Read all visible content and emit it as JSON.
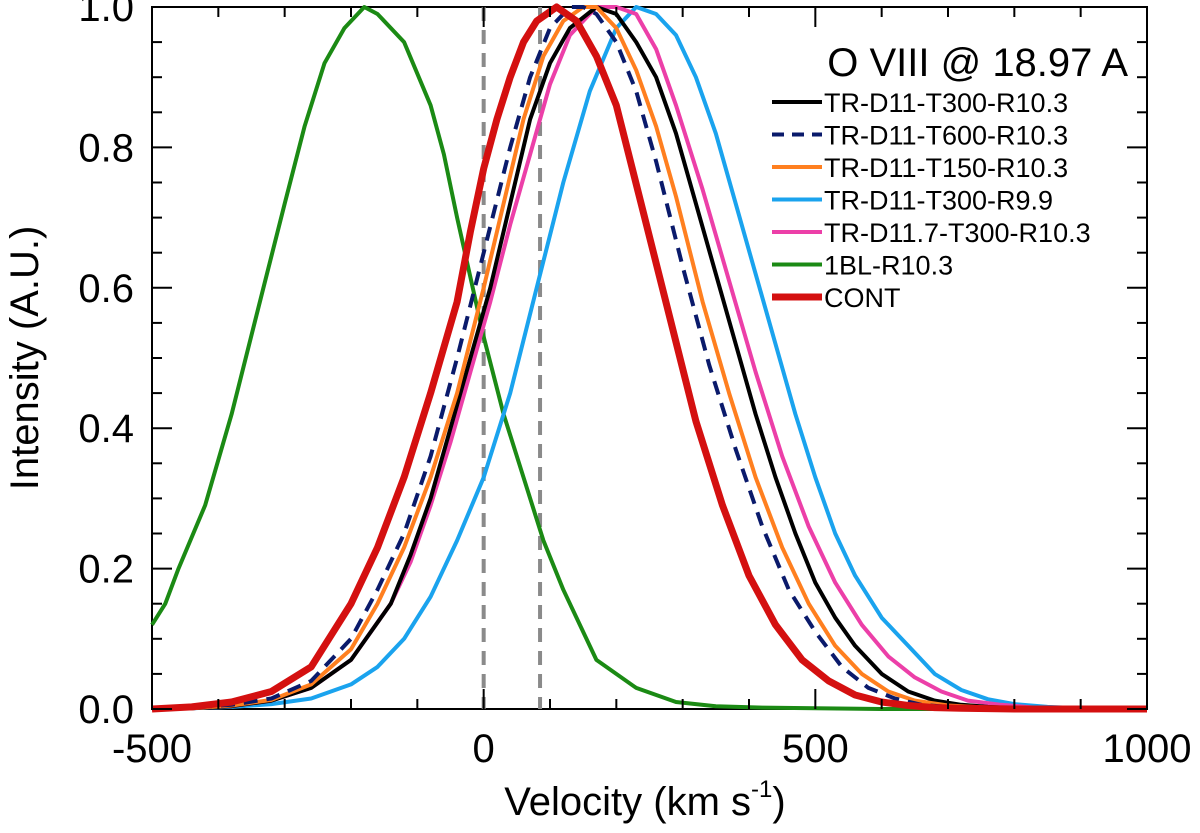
{
  "chart_data": {
    "type": "line",
    "title": "O VIII @ 18.97 A",
    "xlabel": "Velocity (km s",
    "xlabel_sup": "-1",
    "xlabel_close": ")",
    "ylabel": "Intensity (A.U.)",
    "xlim": [
      -500,
      1000
    ],
    "ylim": [
      0,
      1.0
    ],
    "xticks": [
      -500,
      0,
      500,
      1000
    ],
    "xtick_labels": [
      "-500",
      "0",
      "500",
      "1000"
    ],
    "yticks": [
      0,
      0.2,
      0.4,
      0.6,
      0.8,
      1.0
    ],
    "ytick_labels": [
      "0.0",
      "0.2",
      "0.4",
      "0.6",
      "0.8",
      "1.0"
    ],
    "reference_lines": [
      0,
      85
    ],
    "series": [
      {
        "name": "TR-D11-T300-R10.3",
        "color": "#000000",
        "dash": "solid",
        "x": [
          -500,
          -440,
          -380,
          -320,
          -260,
          -200,
          -140,
          -110,
          -80,
          -50,
          -20,
          10,
          40,
          70,
          100,
          130,
          170,
          200,
          230,
          260,
          290,
          320,
          350,
          380,
          410,
          440,
          470,
          500,
          530,
          560,
          600,
          640,
          680,
          720,
          760,
          800,
          850,
          900,
          950,
          1000
        ],
        "values": [
          0.0,
          0.001,
          0.004,
          0.012,
          0.03,
          0.07,
          0.15,
          0.22,
          0.3,
          0.4,
          0.5,
          0.6,
          0.72,
          0.84,
          0.92,
          0.97,
          1.0,
          0.99,
          0.95,
          0.9,
          0.82,
          0.72,
          0.62,
          0.52,
          0.42,
          0.33,
          0.25,
          0.18,
          0.13,
          0.09,
          0.05,
          0.025,
          0.012,
          0.006,
          0.003,
          0.001,
          0.0,
          0.0,
          0.0,
          0.0
        ]
      },
      {
        "name": "TR-D11-T600-R10.3",
        "color": "#0a1a6b",
        "dash": "dashed",
        "x": [
          -500,
          -440,
          -380,
          -320,
          -260,
          -200,
          -160,
          -120,
          -80,
          -40,
          0,
          40,
          70,
          100,
          130,
          150,
          170,
          200,
          230,
          260,
          300,
          340,
          380,
          420,
          460,
          500,
          540,
          580,
          620,
          660,
          700,
          760,
          820,
          900,
          1000
        ],
        "values": [
          0.0,
          0.002,
          0.006,
          0.015,
          0.04,
          0.1,
          0.17,
          0.25,
          0.36,
          0.5,
          0.65,
          0.8,
          0.9,
          0.97,
          1.0,
          1.0,
          0.99,
          0.95,
          0.88,
          0.78,
          0.63,
          0.49,
          0.37,
          0.26,
          0.17,
          0.11,
          0.06,
          0.03,
          0.015,
          0.006,
          0.003,
          0.001,
          0.0,
          0.0,
          0.0
        ]
      },
      {
        "name": "TR-D11-T150-R10.3",
        "color": "#ff7f1f",
        "dash": "solid",
        "x": [
          -500,
          -440,
          -380,
          -320,
          -260,
          -200,
          -160,
          -120,
          -80,
          -40,
          0,
          30,
          60,
          90,
          120,
          150,
          170,
          200,
          230,
          260,
          290,
          330,
          370,
          410,
          450,
          490,
          530,
          570,
          610,
          650,
          700,
          760,
          820,
          900,
          1000
        ],
        "values": [
          0.0,
          0.001,
          0.005,
          0.013,
          0.035,
          0.085,
          0.15,
          0.23,
          0.33,
          0.45,
          0.6,
          0.72,
          0.84,
          0.93,
          0.98,
          1.0,
          1.0,
          0.97,
          0.91,
          0.83,
          0.73,
          0.58,
          0.45,
          0.33,
          0.23,
          0.15,
          0.09,
          0.05,
          0.025,
          0.012,
          0.005,
          0.002,
          0.0,
          0.0,
          0.0
        ]
      },
      {
        "name": "TR-D11-T300-R9.9",
        "color": "#1aa3ee",
        "dash": "solid",
        "x": [
          -500,
          -440,
          -380,
          -320,
          -260,
          -200,
          -160,
          -120,
          -80,
          -40,
          0,
          40,
          80,
          120,
          160,
          200,
          230,
          260,
          290,
          320,
          350,
          380,
          410,
          440,
          470,
          500,
          530,
          560,
          600,
          640,
          680,
          720,
          760,
          800,
          850,
          900,
          950,
          1000
        ],
        "values": [
          0.0,
          0.001,
          0.003,
          0.007,
          0.015,
          0.035,
          0.06,
          0.1,
          0.16,
          0.24,
          0.33,
          0.45,
          0.6,
          0.75,
          0.88,
          0.97,
          1.0,
          0.99,
          0.96,
          0.9,
          0.82,
          0.72,
          0.62,
          0.52,
          0.42,
          0.33,
          0.25,
          0.19,
          0.13,
          0.09,
          0.05,
          0.027,
          0.014,
          0.007,
          0.003,
          0.001,
          0.0,
          0.0
        ]
      },
      {
        "name": "TR-D11.7-T300-R10.3",
        "color": "#ec3fa8",
        "dash": "solid",
        "x": [
          -500,
          -440,
          -380,
          -320,
          -260,
          -200,
          -140,
          -110,
          -80,
          -50,
          -20,
          10,
          40,
          70,
          100,
          130,
          170,
          200,
          230,
          260,
          290,
          330,
          370,
          410,
          450,
          490,
          530,
          570,
          610,
          650,
          690,
          730,
          780,
          830,
          900,
          1000
        ],
        "values": [
          0.0,
          0.001,
          0.004,
          0.012,
          0.03,
          0.07,
          0.15,
          0.21,
          0.29,
          0.38,
          0.48,
          0.58,
          0.69,
          0.79,
          0.89,
          0.96,
          1.0,
          1.0,
          0.99,
          0.94,
          0.86,
          0.74,
          0.61,
          0.48,
          0.36,
          0.26,
          0.18,
          0.12,
          0.075,
          0.045,
          0.025,
          0.012,
          0.006,
          0.002,
          0.0,
          0.0
        ]
      },
      {
        "name": "1BL-R10.3",
        "color": "#1b8a14",
        "dash": "solid",
        "x": [
          -500,
          -480,
          -460,
          -420,
          -380,
          -340,
          -300,
          -270,
          -240,
          -210,
          -180,
          -160,
          -120,
          -80,
          -60,
          -40,
          0,
          30,
          60,
          90,
          120,
          170,
          230,
          290,
          350,
          420,
          500,
          600,
          700,
          800,
          900,
          1000
        ],
        "values": [
          0.12,
          0.15,
          0.2,
          0.29,
          0.42,
          0.57,
          0.72,
          0.83,
          0.92,
          0.97,
          1.0,
          0.99,
          0.95,
          0.86,
          0.79,
          0.7,
          0.53,
          0.42,
          0.33,
          0.24,
          0.17,
          0.07,
          0.03,
          0.01,
          0.004,
          0.002,
          0.001,
          0.0,
          0.0,
          0.0,
          0.0,
          0.0
        ]
      },
      {
        "name": "CONT",
        "color": "#d41010",
        "dash": "thick",
        "x": [
          -500,
          -440,
          -380,
          -320,
          -260,
          -200,
          -160,
          -120,
          -80,
          -40,
          -20,
          0,
          20,
          40,
          60,
          80,
          110,
          140,
          170,
          200,
          240,
          280,
          320,
          360,
          400,
          440,
          480,
          520,
          560,
          600,
          640,
          680,
          720,
          800,
          900,
          1000
        ],
        "values": [
          0.0,
          0.003,
          0.01,
          0.025,
          0.06,
          0.15,
          0.23,
          0.33,
          0.45,
          0.58,
          0.68,
          0.77,
          0.84,
          0.9,
          0.95,
          0.98,
          1.0,
          0.98,
          0.93,
          0.86,
          0.71,
          0.56,
          0.41,
          0.29,
          0.19,
          0.12,
          0.07,
          0.04,
          0.02,
          0.01,
          0.005,
          0.002,
          0.001,
          0.0,
          0.0,
          0.0
        ]
      }
    ]
  }
}
